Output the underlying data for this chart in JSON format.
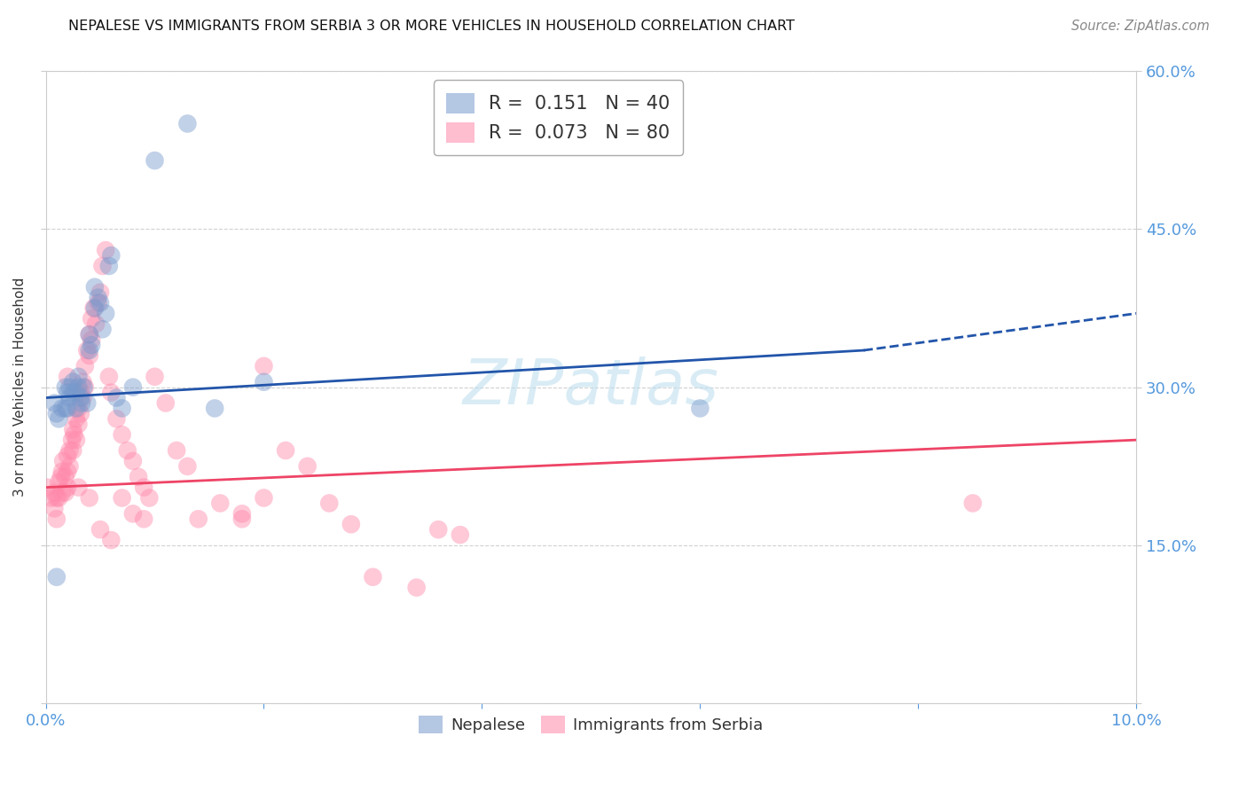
{
  "title": "NEPALESE VS IMMIGRANTS FROM SERBIA 3 OR MORE VEHICLES IN HOUSEHOLD CORRELATION CHART",
  "source": "Source: ZipAtlas.com",
  "ylabel": "3 or more Vehicles in Household",
  "xmin": 0.0,
  "xmax": 0.1,
  "ymin": 0.0,
  "ymax": 0.6,
  "nepalese_color": "#7799cc",
  "serbia_color": "#ff88aa",
  "blue_line_color": "#2255aa",
  "pink_line_color": "#ee4466",
  "axis_tick_color": "#5599dd",
  "watermark_color": "#bbddee",
  "grid_color": "#cccccc",
  "title_color": "#111111",
  "source_color": "#888888",
  "blue_line_y0": 0.29,
  "blue_line_y1_solid": 0.335,
  "blue_line_y1_dash": 0.37,
  "blue_solid_xend": 0.075,
  "pink_line_y0": 0.205,
  "pink_line_y1": 0.25,
  "nepalese_points_x": [
    0.0008,
    0.001,
    0.0012,
    0.0015,
    0.0018,
    0.0018,
    0.002,
    0.002,
    0.0022,
    0.0022,
    0.0025,
    0.0025,
    0.0028,
    0.0028,
    0.003,
    0.003,
    0.0032,
    0.0033,
    0.0035,
    0.0038,
    0.004,
    0.004,
    0.0042,
    0.0045,
    0.0045,
    0.0048,
    0.005,
    0.0052,
    0.0055,
    0.0058,
    0.006,
    0.0065,
    0.007,
    0.008,
    0.01,
    0.013,
    0.0155,
    0.02,
    0.06,
    0.001
  ],
  "nepalese_points_y": [
    0.285,
    0.275,
    0.27,
    0.28,
    0.3,
    0.28,
    0.295,
    0.28,
    0.3,
    0.29,
    0.305,
    0.295,
    0.295,
    0.28,
    0.31,
    0.3,
    0.29,
    0.285,
    0.3,
    0.285,
    0.35,
    0.335,
    0.34,
    0.395,
    0.375,
    0.385,
    0.38,
    0.355,
    0.37,
    0.415,
    0.425,
    0.29,
    0.28,
    0.3,
    0.515,
    0.55,
    0.28,
    0.305,
    0.28,
    0.12
  ],
  "serbia_points_x": [
    0.0005,
    0.0008,
    0.0008,
    0.001,
    0.001,
    0.0012,
    0.0012,
    0.0014,
    0.0015,
    0.0015,
    0.0016,
    0.0018,
    0.0018,
    0.002,
    0.002,
    0.002,
    0.0022,
    0.0022,
    0.0024,
    0.0025,
    0.0025,
    0.0026,
    0.0028,
    0.0028,
    0.003,
    0.003,
    0.0032,
    0.0032,
    0.0034,
    0.0034,
    0.0036,
    0.0036,
    0.0038,
    0.004,
    0.004,
    0.0042,
    0.0042,
    0.0044,
    0.0046,
    0.0048,
    0.005,
    0.0052,
    0.0055,
    0.0058,
    0.006,
    0.0065,
    0.007,
    0.0075,
    0.008,
    0.0085,
    0.009,
    0.0095,
    0.01,
    0.011,
    0.012,
    0.013,
    0.014,
    0.016,
    0.018,
    0.02,
    0.022,
    0.024,
    0.026,
    0.028,
    0.03,
    0.034,
    0.036,
    0.038,
    0.002,
    0.003,
    0.004,
    0.005,
    0.006,
    0.007,
    0.008,
    0.009,
    0.085,
    0.0001,
    0.02,
    0.018
  ],
  "serbia_points_y": [
    0.195,
    0.185,
    0.2,
    0.175,
    0.195,
    0.21,
    0.195,
    0.215,
    0.2,
    0.22,
    0.23,
    0.215,
    0.2,
    0.235,
    0.22,
    0.205,
    0.24,
    0.225,
    0.25,
    0.26,
    0.24,
    0.255,
    0.27,
    0.25,
    0.28,
    0.265,
    0.295,
    0.275,
    0.305,
    0.29,
    0.32,
    0.3,
    0.335,
    0.35,
    0.33,
    0.365,
    0.345,
    0.375,
    0.36,
    0.38,
    0.39,
    0.415,
    0.43,
    0.31,
    0.295,
    0.27,
    0.255,
    0.24,
    0.23,
    0.215,
    0.205,
    0.195,
    0.31,
    0.285,
    0.24,
    0.225,
    0.175,
    0.19,
    0.175,
    0.32,
    0.24,
    0.225,
    0.19,
    0.17,
    0.12,
    0.11,
    0.165,
    0.16,
    0.31,
    0.205,
    0.195,
    0.165,
    0.155,
    0.195,
    0.18,
    0.175,
    0.19,
    0.205,
    0.195,
    0.18
  ]
}
